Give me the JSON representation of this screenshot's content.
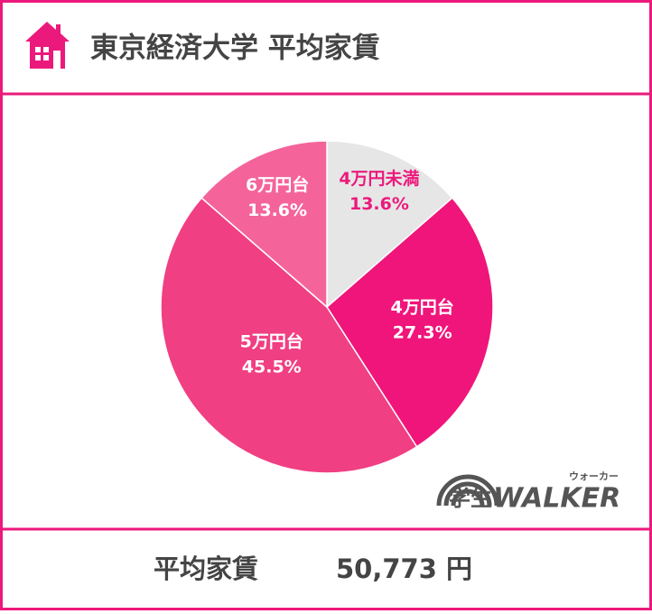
{
  "chart_data": {
    "type": "pie",
    "title": "東京経済大学 平均家賃",
    "categories": [
      "4万円未満",
      "4万円台",
      "5万円台",
      "6万円台"
    ],
    "values": [
      13.6,
      27.3,
      45.5,
      13.6
    ],
    "value_labels": [
      "13.6%",
      "27.3%",
      "45.5%",
      "13.6%"
    ],
    "colors": [
      "#e6e6e6",
      "#f0157a",
      "#f03f82",
      "#f4649b"
    ],
    "label_colors": [
      "#ec197c",
      "#ffffff",
      "#ffffff",
      "#ffffff"
    ]
  },
  "logo": {
    "text": "学生",
    "brand": "WALKER",
    "ruby": "ウォーカー"
  },
  "footer": {
    "label": "平均家賃",
    "value": "50,773 円"
  }
}
